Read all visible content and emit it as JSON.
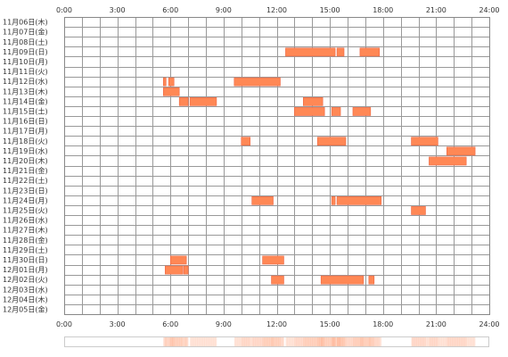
{
  "chart_data": {
    "type": "timeline",
    "x_unit": "hour of day",
    "xlim": [
      0,
      24
    ],
    "x_ticks": [
      "0:00",
      "3:00",
      "6:00",
      "9:00",
      "12:00",
      "15:00",
      "18:00",
      "21:00",
      "24:00"
    ],
    "grid": true,
    "rows": [
      "11月06日(木)",
      "11月07日(金)",
      "11月08日(土)",
      "11月09日(日)",
      "11月10日(月)",
      "11月11日(火)",
      "11月12日(水)",
      "11月13日(木)",
      "11月14日(金)",
      "11月15日(土)",
      "11月16日(日)",
      "11月17日(月)",
      "11月18日(火)",
      "11月19日(水)",
      "11月20日(木)",
      "11月21日(金)",
      "11月22日(土)",
      "11月23日(日)",
      "11月24日(月)",
      "11月25日(火)",
      "11月26日(水)",
      "11月27日(木)",
      "11月28日(金)",
      "11月29日(土)",
      "11月30日(日)",
      "12月01日(月)",
      "12月02日(火)",
      "12月03日(水)",
      "12月04日(木)",
      "12月05日(金)"
    ],
    "segments": [
      {
        "row": 3,
        "start": 12.5,
        "end": 15.3
      },
      {
        "row": 3,
        "start": 15.4,
        "end": 15.8
      },
      {
        "row": 3,
        "start": 16.7,
        "end": 17.8
      },
      {
        "row": 6,
        "start": 5.6,
        "end": 5.75
      },
      {
        "row": 6,
        "start": 5.9,
        "end": 6.2
      },
      {
        "row": 6,
        "start": 9.6,
        "end": 12.2
      },
      {
        "row": 7,
        "start": 5.6,
        "end": 6.5
      },
      {
        "row": 8,
        "start": 6.5,
        "end": 7.0
      },
      {
        "row": 8,
        "start": 7.1,
        "end": 8.6
      },
      {
        "row": 8,
        "start": 13.5,
        "end": 14.6
      },
      {
        "row": 9,
        "start": 13.0,
        "end": 14.7
      },
      {
        "row": 9,
        "start": 15.1,
        "end": 15.6
      },
      {
        "row": 9,
        "start": 16.3,
        "end": 17.3
      },
      {
        "row": 12,
        "start": 10.0,
        "end": 10.5
      },
      {
        "row": 12,
        "start": 14.3,
        "end": 15.9
      },
      {
        "row": 12,
        "start": 19.6,
        "end": 21.1
      },
      {
        "row": 13,
        "start": 21.6,
        "end": 23.2
      },
      {
        "row": 14,
        "start": 20.6,
        "end": 22.7
      },
      {
        "row": 18,
        "start": 10.6,
        "end": 11.8
      },
      {
        "row": 18,
        "start": 15.1,
        "end": 15.3
      },
      {
        "row": 18,
        "start": 15.4,
        "end": 17.9
      },
      {
        "row": 19,
        "start": 19.6,
        "end": 20.4
      },
      {
        "row": 24,
        "start": 6.0,
        "end": 6.9
      },
      {
        "row": 24,
        "start": 11.2,
        "end": 12.4
      },
      {
        "row": 25,
        "start": 5.7,
        "end": 6.7
      },
      {
        "row": 25,
        "start": 6.75,
        "end": 7.0
      },
      {
        "row": 26,
        "start": 11.7,
        "end": 12.4
      },
      {
        "row": 26,
        "start": 14.5,
        "end": 16.9
      },
      {
        "row": 26,
        "start": 17.2,
        "end": 17.5
      }
    ],
    "colors": {
      "segment_fill": "#ff8855",
      "segment_edge": "#ee6644",
      "grid": "#999999",
      "frame": "#888888",
      "strip_border": "#cccccc",
      "strip_tint": "#ff8855"
    }
  }
}
